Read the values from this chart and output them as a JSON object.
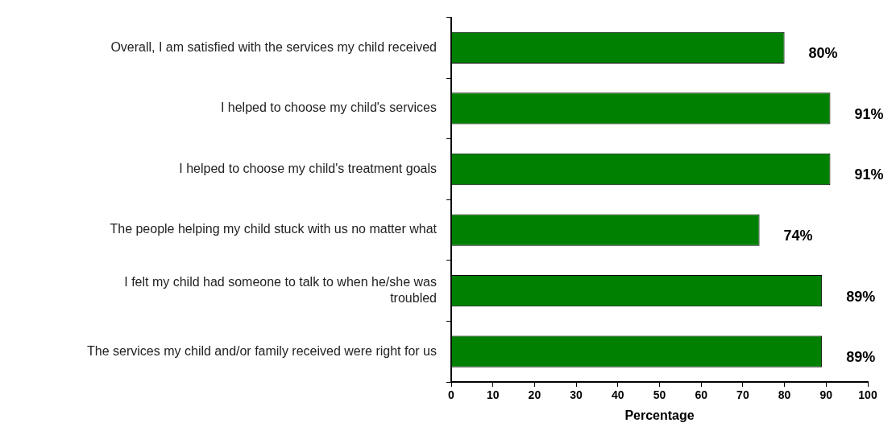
{
  "chart_data": {
    "type": "bar",
    "orientation": "horizontal",
    "xlabel": "Percentage",
    "categories": [
      "Overall, I am satisfied with the services my child received",
      "I helped to choose my child's services",
      "I helped to choose my child's treatment goals",
      "The people helping my child stuck with us no matter what",
      "I felt my child had someone to talk to when he/she was troubled",
      "The services my child and/or family received were right for us"
    ],
    "values": [
      80,
      91,
      91,
      74,
      89,
      89
    ],
    "value_labels": [
      "80%",
      "91%",
      "91%",
      "74%",
      "89%",
      "89%"
    ],
    "color": "#008000",
    "xlim": [
      0,
      100
    ],
    "xticks": [
      0,
      10,
      20,
      30,
      40,
      50,
      60,
      70,
      80,
      90,
      100
    ],
    "grid": false,
    "legend": false
  }
}
